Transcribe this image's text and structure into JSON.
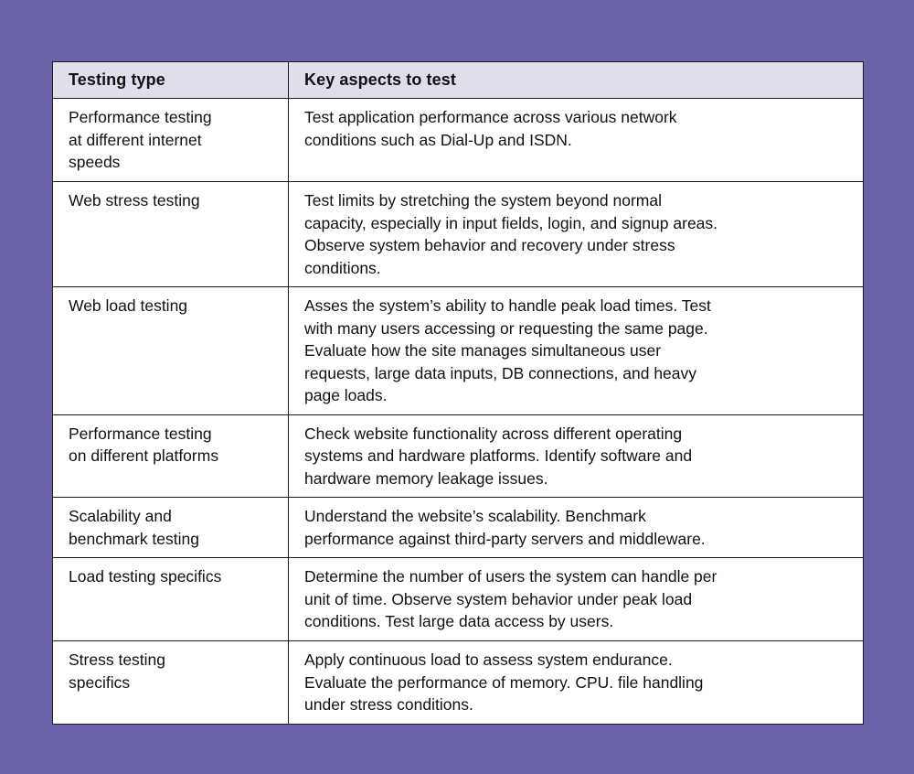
{
  "colors": {
    "background": "#6A63A7",
    "header_bg": "#DFDEEB",
    "cell_bg": "#FFFFFF",
    "border": "#1C1C1E",
    "text": "#111112"
  },
  "chart_data": {
    "type": "table",
    "title": "",
    "columns": [
      "Testing type",
      "Key aspects to test"
    ],
    "rows": [
      {
        "testing_type": "Performance testing\nat different internet\nspeeds",
        "key_aspects": "Test application performance across various network\nconditions such as Dial-Up and ISDN."
      },
      {
        "testing_type": "Web stress testing",
        "key_aspects": "Test limits by stretching the system beyond normal\ncapacity, especially in input fields, login, and signup areas.\nObserve system behavior and recovery under stress\nconditions."
      },
      {
        "testing_type": "Web load testing",
        "key_aspects": "Asses the system’s ability to handle peak load times. Test\nwith many users accessing or requesting the same page.\nEvaluate how the site manages simultaneous user\nrequests, large data inputs, DB connections, and heavy\npage loads."
      },
      {
        "testing_type": "Performance testing\non different platforms",
        "key_aspects": "Check website functionality across different operating\nsystems and hardware platforms. Identify software and\nhardware memory leakage issues."
      },
      {
        "testing_type": "Scalability and\nbenchmark testing",
        "key_aspects": "Understand the website’s scalability. Benchmark\nperformance against third-party servers and middleware."
      },
      {
        "testing_type": "Load testing specifics",
        "key_aspects": "Determine the number of users the system can handle per\nunit of time. Observe system behavior under peak load\nconditions. Test large data access by users."
      },
      {
        "testing_type": "Stress testing\nspecifics",
        "key_aspects": "Apply continuous load to assess system endurance.\nEvaluate the performance of memory. CPU. file handling\nunder stress conditions."
      }
    ]
  }
}
